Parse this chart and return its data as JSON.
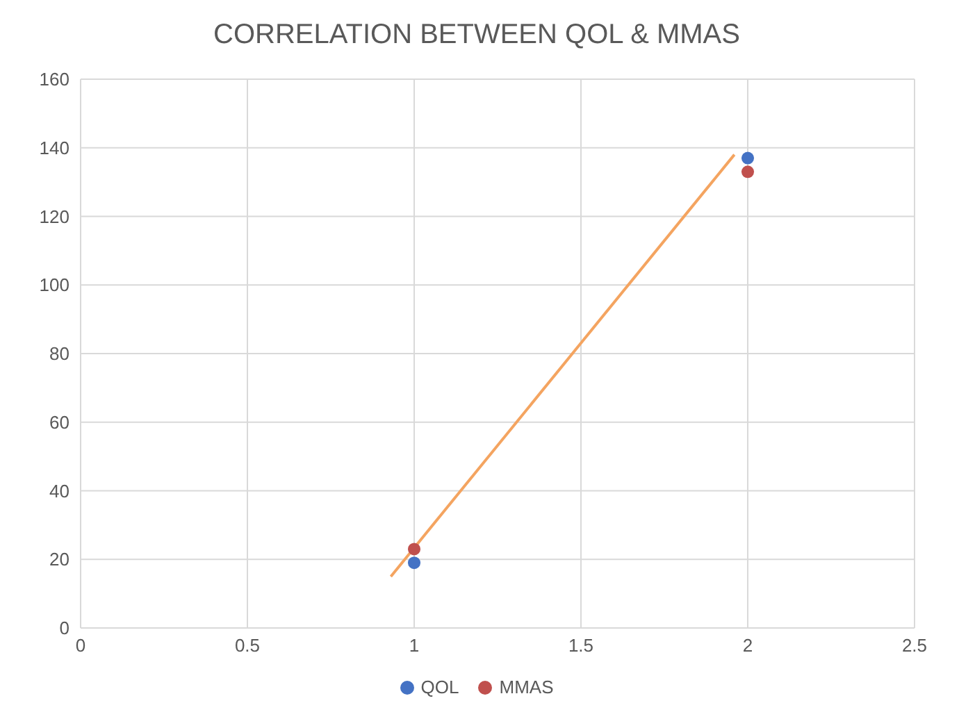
{
  "chart_data": {
    "type": "scatter",
    "title": "CORRELATION BETWEEN QOL & MMAS",
    "series": [
      {
        "name": "QOL",
        "color": "#4472c4",
        "x": [
          1,
          2
        ],
        "values": [
          19,
          137
        ],
        "marker": "circle"
      },
      {
        "name": "MMAS",
        "color": "#c0504d",
        "x": [
          1,
          2
        ],
        "values": [
          23,
          133
        ],
        "marker": "circle"
      },
      {
        "type": "line",
        "color": "#f4a460",
        "x": [
          0.93,
          1.96
        ],
        "values": [
          15,
          138
        ],
        "marker": "none"
      }
    ],
    "xlim": [
      0,
      2.5
    ],
    "xticks": [
      0,
      0.5,
      1,
      1.5,
      2,
      2.5
    ],
    "ylim": [
      0,
      160
    ],
    "yticks": [
      0,
      20,
      40,
      60,
      80,
      100,
      120,
      140,
      160
    ],
    "grid": true,
    "legend": "bottom"
  }
}
